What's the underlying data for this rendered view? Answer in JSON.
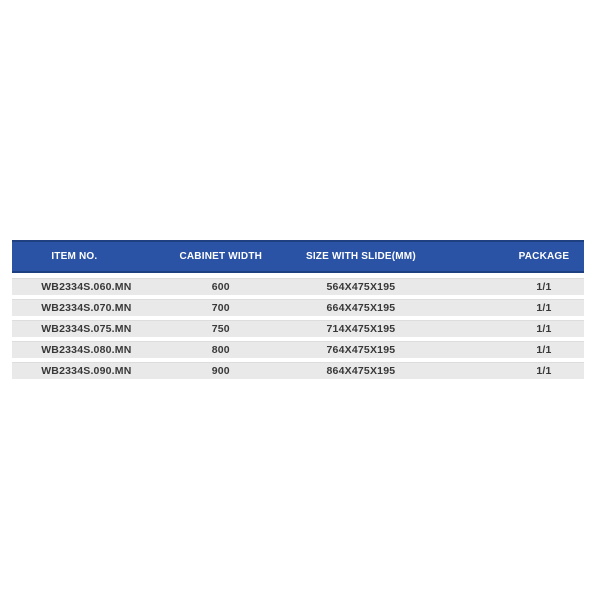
{
  "table": {
    "columns": [
      {
        "label": "ITEM NO."
      },
      {
        "label": "CABINET WIDTH"
      },
      {
        "label": "SIZE WITH SLIDE(MM)"
      },
      {
        "label": "PACKAGE"
      }
    ],
    "rows": [
      {
        "item_no": "WB2334S.060.MN",
        "cabinet_width": "600",
        "size_with_slide": "564X475X195",
        "package": "1/1"
      },
      {
        "item_no": "WB2334S.070.MN",
        "cabinet_width": "700",
        "size_with_slide": "664X475X195",
        "package": "1/1"
      },
      {
        "item_no": "WB2334S.075.MN",
        "cabinet_width": "750",
        "size_with_slide": "714X475X195",
        "package": "1/1"
      },
      {
        "item_no": "WB2334S.080.MN",
        "cabinet_width": "800",
        "size_with_slide": "764X475X195",
        "package": "1/1"
      },
      {
        "item_no": "WB2334S.090.MN",
        "cabinet_width": "900",
        "size_with_slide": "864X475X195",
        "package": "1/1"
      }
    ],
    "colors": {
      "header_bg": "#2b53a5",
      "header_edge": "#1f4080",
      "header_text": "#ffffff",
      "row_bg": "#e9e9e9",
      "row_text": "#383838",
      "page_bg": "#ffffff"
    }
  }
}
